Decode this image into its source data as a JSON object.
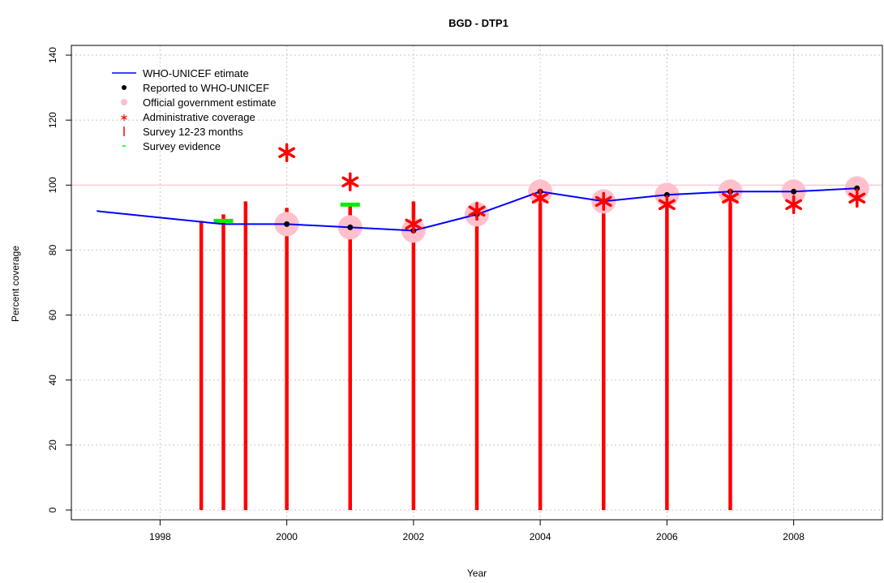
{
  "chart_data": {
    "type": "line",
    "title": "BGD  -  DTP1",
    "xlabel": "Year",
    "ylabel": "Percent coverage",
    "xlim": [
      1996.6,
      2009.4
    ],
    "ylim": [
      -3,
      143
    ],
    "x_ticks": [
      1998,
      2000,
      2002,
      2004,
      2006,
      2008
    ],
    "y_ticks": [
      0,
      20,
      40,
      60,
      80,
      100,
      120,
      140
    ],
    "grid": true,
    "reference_line": 100,
    "legend_position": "top-left",
    "legend": [
      {
        "label": "WHO-UNICEF etimate",
        "marker": "line"
      },
      {
        "label": "Reported to WHO-UNICEF",
        "marker": "dot"
      },
      {
        "label": "Official government estimate",
        "marker": "circle"
      },
      {
        "label": "Administrative coverage",
        "marker": "star"
      },
      {
        "label": "Survey 12-23 months",
        "marker": "bar"
      },
      {
        "label": "Survey evidence",
        "marker": "dash"
      }
    ],
    "series": [
      {
        "name": "WHO-UNICEF etimate",
        "x": [
          1997,
          1998,
          1999,
          2000,
          2001,
          2002,
          2003,
          2004,
          2005,
          2006,
          2007,
          2008,
          2009
        ],
        "y": [
          92,
          90,
          88,
          88,
          87,
          86,
          91,
          98,
          95,
          97,
          98,
          98,
          99
        ]
      },
      {
        "name": "Reported to WHO-UNICEF",
        "x": [
          2000,
          2001,
          2002,
          2003,
          2004,
          2005,
          2006,
          2007,
          2008,
          2009
        ],
        "y": [
          88,
          87,
          86,
          91,
          98,
          95,
          97,
          98,
          98,
          99
        ]
      },
      {
        "name": "Official government estimate",
        "x": [
          2000,
          2001,
          2002,
          2003,
          2004,
          2005,
          2006,
          2007,
          2008,
          2009
        ],
        "y": [
          88,
          87,
          86,
          91,
          98,
          95,
          97,
          98,
          98,
          99
        ]
      },
      {
        "name": "Administrative coverage",
        "x": [
          2000,
          2001,
          2002,
          2003,
          2004,
          2005,
          2006,
          2007,
          2008,
          2009
        ],
        "y": [
          110,
          101,
          88,
          92,
          96,
          95,
          94,
          96,
          94,
          96
        ]
      },
      {
        "name": "Survey 12-23 months",
        "x": [
          1998.65,
          1999,
          1999.35,
          2000,
          2001,
          2002,
          2003,
          2004,
          2005,
          2006,
          2007
        ],
        "y": [
          89,
          91,
          95,
          93,
          94,
          95,
          94,
          97,
          96,
          97,
          97
        ]
      },
      {
        "name": "Survey evidence",
        "x": [
          1999,
          2001
        ],
        "y": [
          89,
          94
        ]
      }
    ],
    "colors": {
      "estimate_line": "#0000ff",
      "reported_dot": "#000000",
      "official_circle": "#ffc0cb",
      "admin_star": "#ff0000",
      "survey_bar": "#ff0000",
      "survey_evidence": "#00ee00",
      "reference_line": "#ffc0cb",
      "grid": "#c8c8c8"
    }
  }
}
